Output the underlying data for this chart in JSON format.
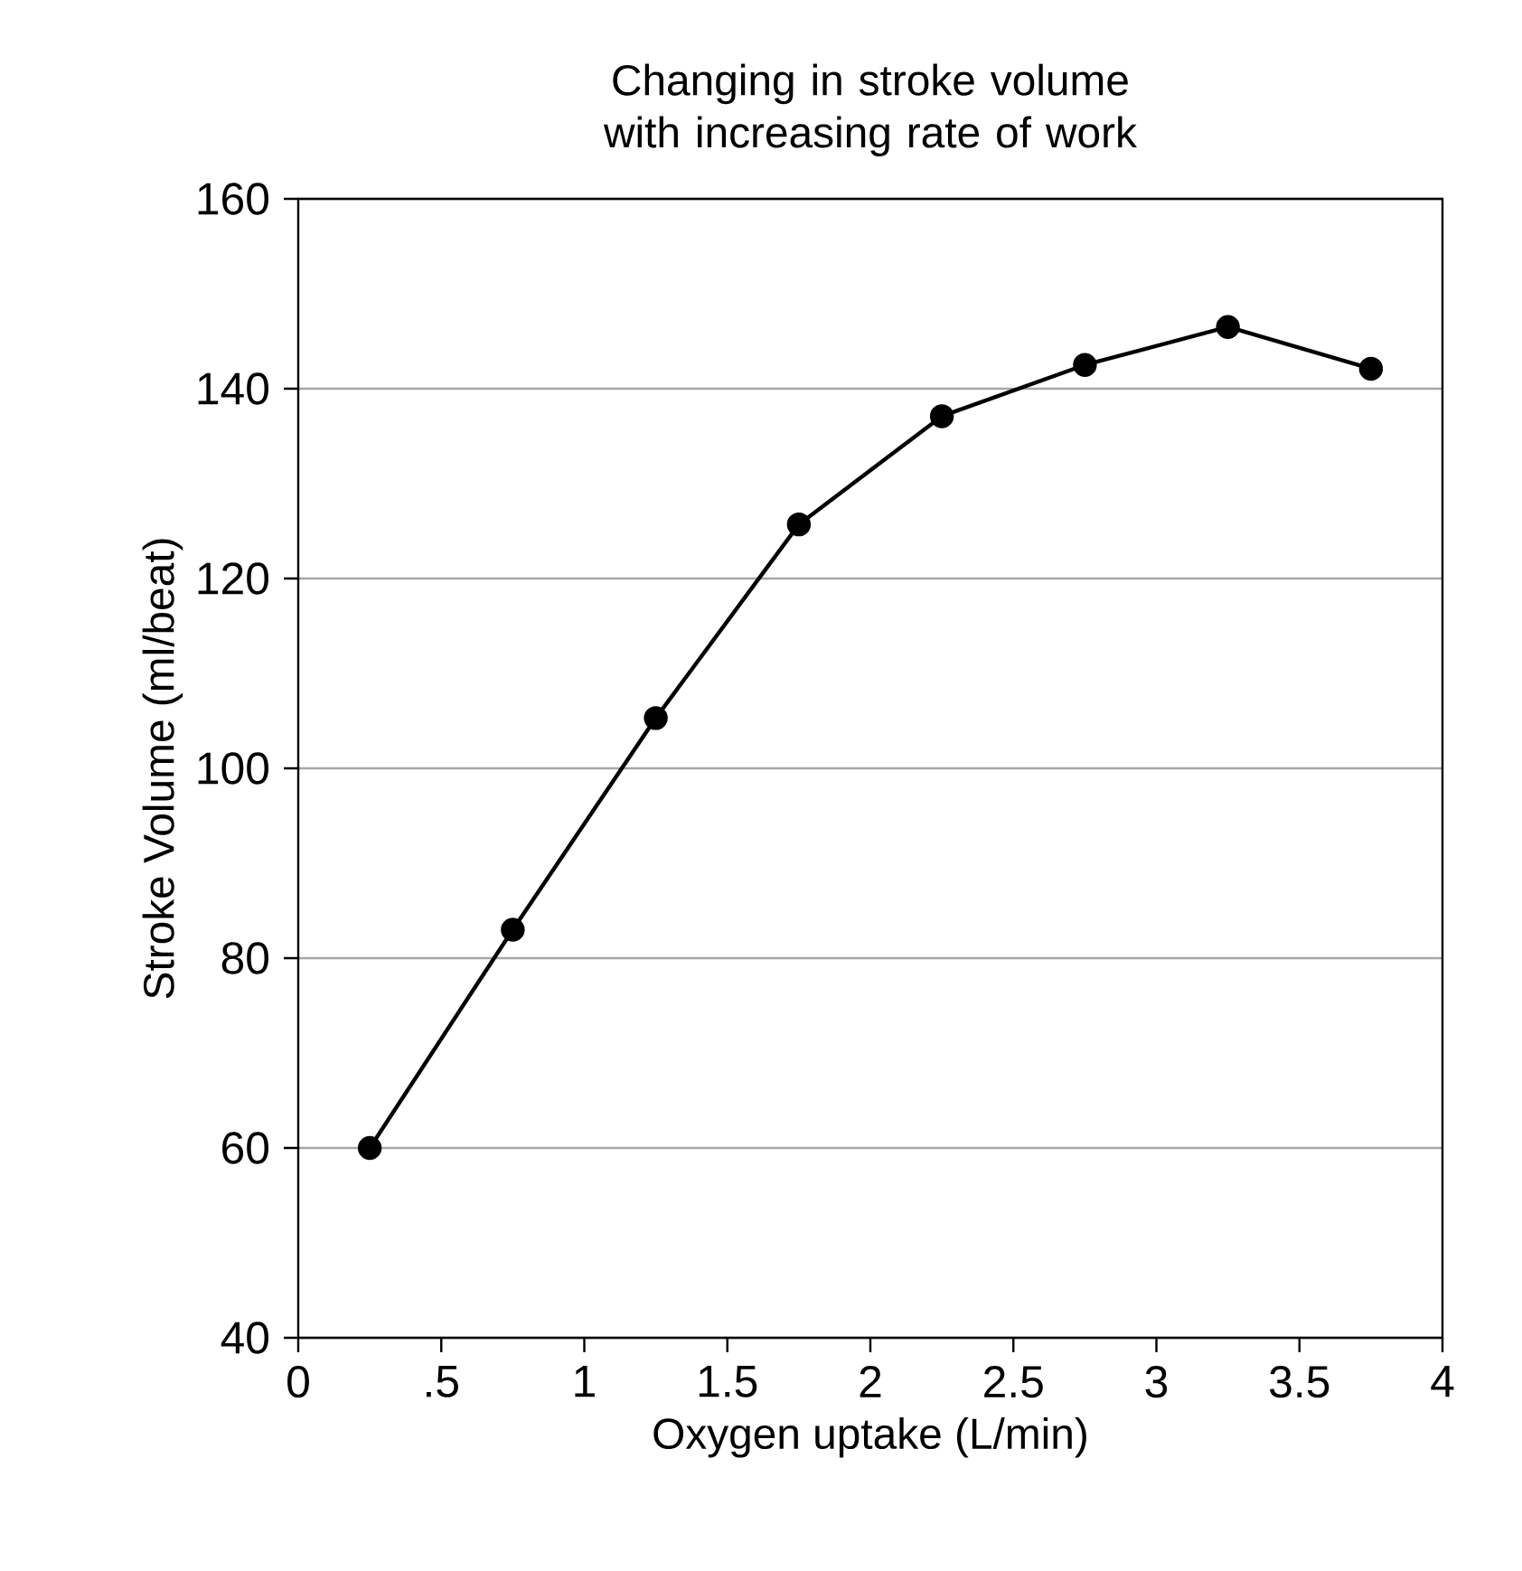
{
  "chart_data": {
    "type": "line",
    "title": "Changing in stroke volume with increasing rate of work",
    "xlabel": "Oxygen uptake (L/min)",
    "ylabel": "Stroke Volume (ml/beat)",
    "x": [
      0.25,
      0.75,
      1.25,
      1.75,
      2.25,
      2.75,
      3.25,
      3.75
    ],
    "series": [
      {
        "color": "#000000",
        "values": [
          60,
          83,
          105.3,
          125.7,
          137.1,
          142.5,
          146.5,
          142.1
        ]
      }
    ],
    "xlim": [
      0,
      4
    ],
    "ylim": [
      40,
      160
    ],
    "xticks": [
      0,
      {
        "value": 0.5,
        "label": ".5"
      },
      1,
      1.5,
      2,
      2.5,
      3,
      3.5,
      4
    ],
    "yticks": [
      40,
      60,
      80,
      100,
      120,
      140,
      160
    ],
    "grid": "y",
    "marker": "circle",
    "line_style": "solid"
  }
}
